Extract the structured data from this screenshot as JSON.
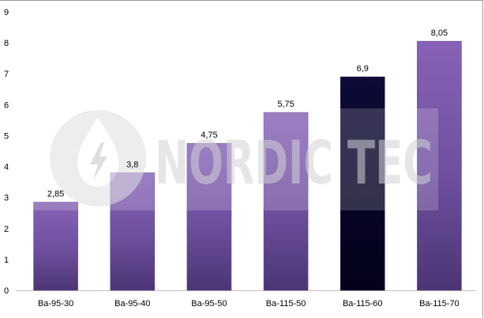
{
  "chart_data": {
    "type": "bar",
    "categories": [
      "Ba-95-30",
      "Ba-95-40",
      "Ba-95-50",
      "Ba-115-50",
      "Ba-115-60",
      "Ba-115-70"
    ],
    "values": [
      2.85,
      3.8,
      4.75,
      5.75,
      6.9,
      8.05
    ],
    "value_labels": [
      "2,85",
      "3,8",
      "4,75",
      "5,75",
      "6,9",
      "8,05"
    ],
    "y_ticks": [
      "0",
      "1",
      "2",
      "3",
      "4",
      "5",
      "6",
      "7",
      "8",
      "9"
    ],
    "ylim": [
      0,
      9
    ],
    "grid": false,
    "legend": "none",
    "colors": {
      "bar": "#7b5aa6",
      "bar_dark": "#4f3778",
      "highlight": "#07052a"
    },
    "highlight_index": 4
  },
  "watermark": {
    "text": "NORDIC TEC",
    "icon": "droplet-lightning-icon"
  }
}
